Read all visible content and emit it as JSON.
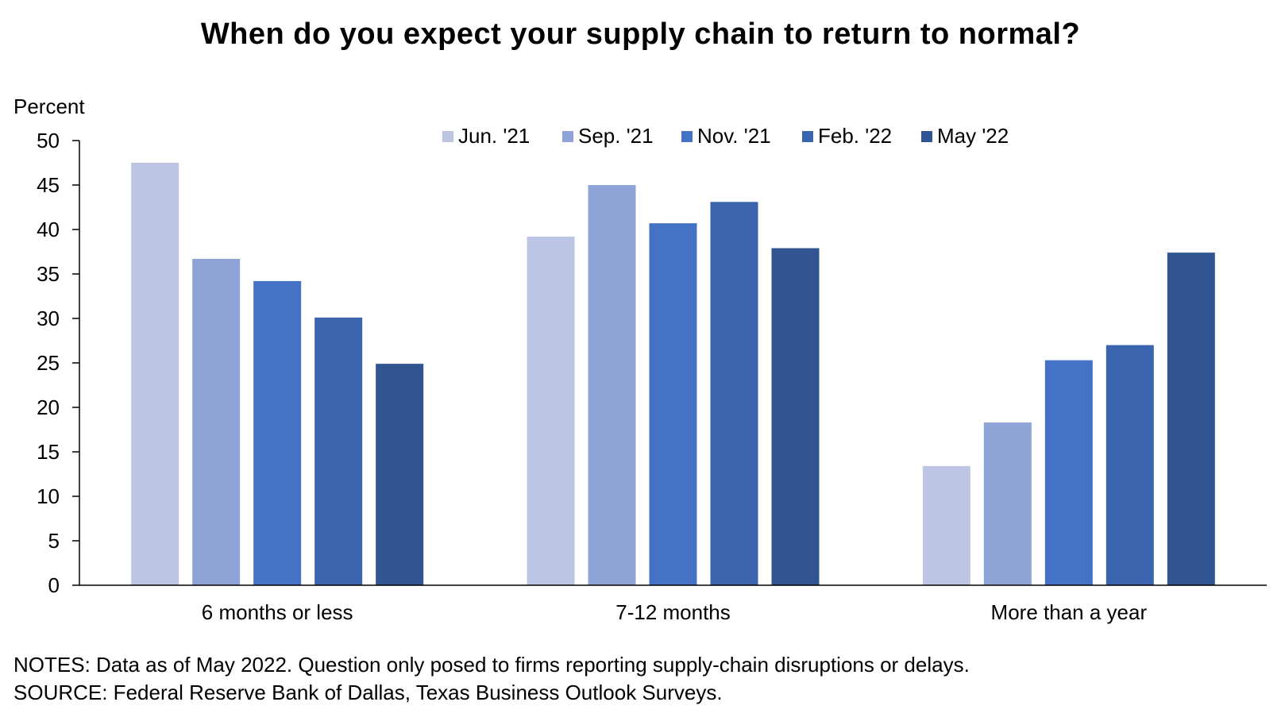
{
  "chart_data": {
    "type": "bar",
    "title": "When do you expect your supply chain to return to normal?",
    "ylabel": "Percent",
    "xlabel": "",
    "ylim": [
      0,
      50
    ],
    "yticks": [
      0,
      5,
      10,
      15,
      20,
      25,
      30,
      35,
      40,
      45,
      50
    ],
    "grid": false,
    "legend_position": "top-right",
    "categories": [
      "6 months or less",
      "7-12 months",
      "More than a year"
    ],
    "series": [
      {
        "name": "Jun. '21",
        "color": "#bcc5e3",
        "values": [
          47.5,
          39.2,
          13.4
        ]
      },
      {
        "name": "Sep. '21",
        "color": "#8fa4d6",
        "values": [
          36.7,
          45.0,
          18.3
        ]
      },
      {
        "name": "Nov. '21",
        "color": "#4472c4",
        "values": [
          34.2,
          40.7,
          25.3
        ]
      },
      {
        "name": "Feb. '22",
        "color": "#3a64ad",
        "values": [
          30.1,
          43.1,
          27.0
        ]
      },
      {
        "name": "May '22",
        "color": "#305591",
        "values": [
          24.9,
          37.9,
          37.4
        ]
      }
    ]
  },
  "footer": {
    "notes": "NOTES: Data as of May 2022. Question only posed to firms reporting supply-chain disruptions or delays.",
    "source": "SOURCE: Federal Reserve Bank of Dallas, Texas Business Outlook Surveys."
  }
}
